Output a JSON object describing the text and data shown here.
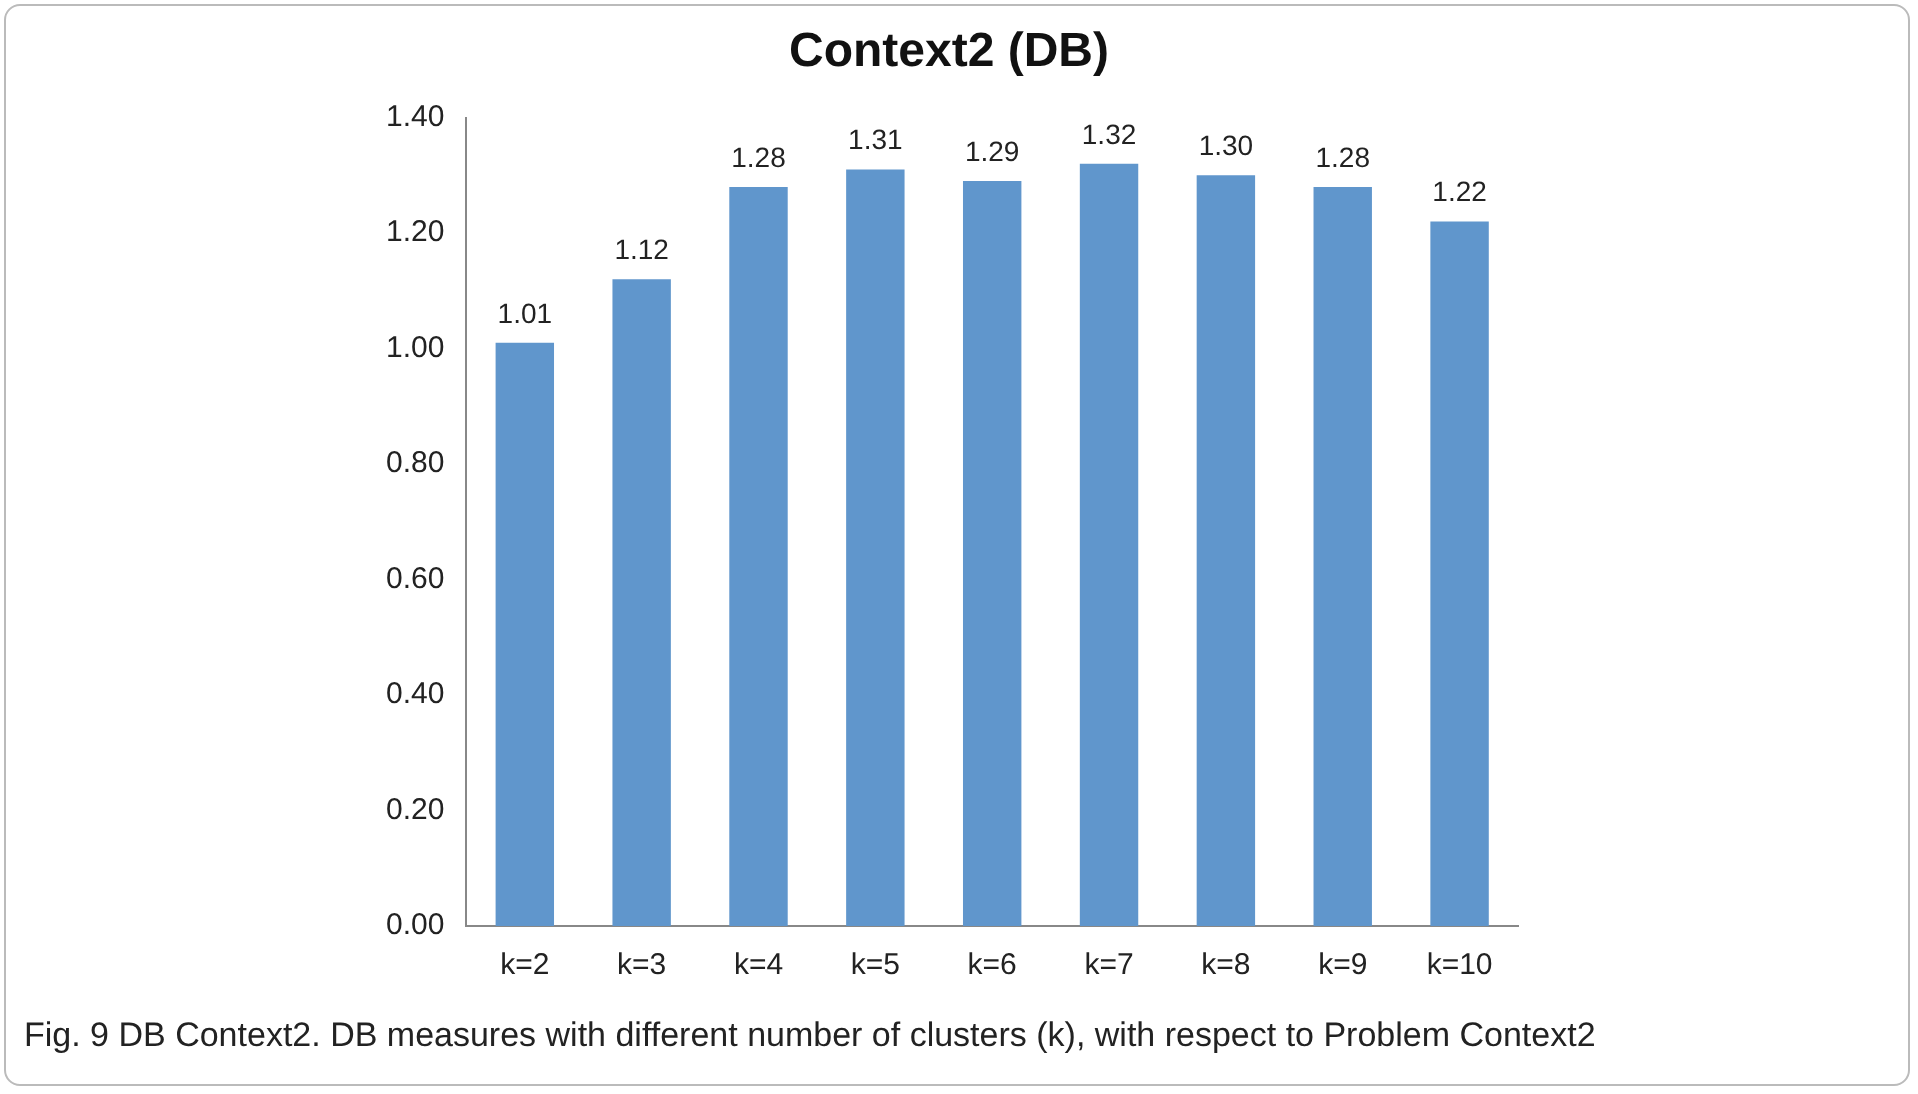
{
  "chart_data": {
    "type": "bar",
    "title": "Context2 (DB)",
    "categories": [
      "k=2",
      "k=3",
      "k=4",
      "k=5",
      "k=6",
      "k=7",
      "k=8",
      "k=9",
      "k=10"
    ],
    "values": [
      1.01,
      1.12,
      1.28,
      1.31,
      1.29,
      1.32,
      1.3,
      1.28,
      1.22
    ],
    "value_labels": [
      "1.01",
      "1.12",
      "1.28",
      "1.31",
      "1.29",
      "1.32",
      "1.30",
      "1.28",
      "1.22"
    ],
    "color": "#6096cc",
    "ylim": [
      0,
      1.4
    ],
    "yticks": [
      {
        "value": 0,
        "label": "0.00"
      },
      {
        "value": 0.2,
        "label": "0.20"
      },
      {
        "value": 0.4,
        "label": "0.40"
      },
      {
        "value": 0.6,
        "label": "0.60"
      },
      {
        "value": 0.8,
        "label": "0.80"
      },
      {
        "value": 1.0,
        "label": "1.00"
      },
      {
        "value": 1.2,
        "label": "1.20"
      },
      {
        "value": 1.4,
        "label": "1.40"
      }
    ],
    "grid": false,
    "legend": false,
    "annotations": [
      "Fig. 9 DB Context2. DB measures with different number of clusters (k), with respect to Problem Context2"
    ]
  }
}
